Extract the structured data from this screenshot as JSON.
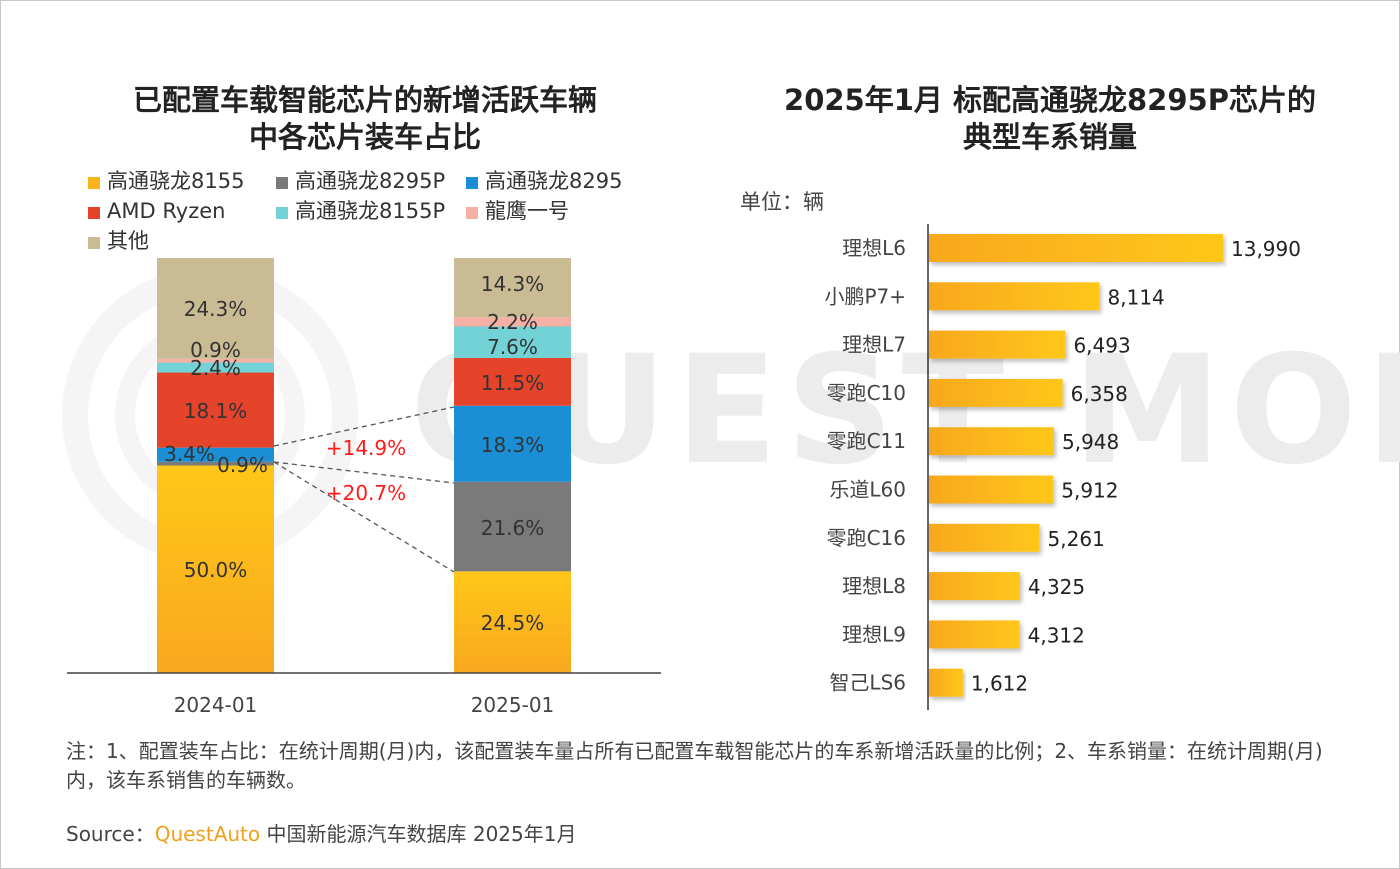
{
  "watermark": "QUEST MOBILE",
  "left": {
    "title_line1": "已配置车载智能芯片的新增活跃车辆",
    "title_line2": "中各芯片装车占比"
  },
  "right": {
    "title_line1": "2025年1月 标配高通骁龙8295P芯片的",
    "title_line2": "典型车系销量",
    "unit": "单位：辆"
  },
  "note": "注：1、配置装车占比：在统计周期(月)内，该配置装车量占所有已配置车载智能芯片的车系新增活跃量的比例；2、车系销量：在统计周期(月)内，该车系销售的车辆数。",
  "source": {
    "label": "Source：",
    "brand": "QuestAuto",
    "rest": " 中国新能源汽车数据库 2025年1月"
  },
  "chart_data": [
    {
      "type": "bar",
      "stacked": true,
      "title": "已配置车载智能芯片的新增活跃车辆中各芯片装车占比",
      "unit": "%",
      "categories": [
        "2024-01",
        "2025-01"
      ],
      "ylim": [
        0,
        100
      ],
      "grid": false,
      "legend_position": "top",
      "series": [
        {
          "name": "高通骁龙8155",
          "color": "#fbb51c",
          "values": [
            50.0,
            24.5
          ],
          "labels": [
            "50.0%",
            "24.5%"
          ]
        },
        {
          "name": "高通骁龙8295P",
          "color": "#7a7a7a",
          "values": [
            0.9,
            21.6
          ],
          "labels": [
            "0.9%",
            "21.6%"
          ]
        },
        {
          "name": "高通骁龙8295",
          "color": "#1a8fd5",
          "values": [
            3.4,
            18.3
          ],
          "labels": [
            "3.4%",
            "18.3%"
          ]
        },
        {
          "name": "AMD Ryzen",
          "color": "#e5432a",
          "values": [
            18.1,
            11.5
          ],
          "labels": [
            "18.1%",
            "11.5%"
          ]
        },
        {
          "name": "高通骁龙8155P",
          "color": "#72d2d5",
          "values": [
            2.4,
            7.6
          ],
          "labels": [
            "2.4%",
            "7.6%"
          ]
        },
        {
          "name": "龍鹰一号",
          "color": "#f6b0a5",
          "values": [
            0.9,
            2.2
          ],
          "labels": [
            "0.9%",
            "2.2%"
          ]
        },
        {
          "name": "其他",
          "color": "#c9bb93",
          "values": [
            24.3,
            14.3
          ],
          "labels": [
            "24.3%",
            "14.3%"
          ]
        }
      ],
      "annotations": [
        {
          "text": "+14.9%",
          "series": "高通骁龙8295",
          "color": "#ff1a1a"
        },
        {
          "text": "+20.7%",
          "series": "高通骁龙8295P",
          "color": "#ff1a1a"
        }
      ]
    },
    {
      "type": "bar",
      "orientation": "horizontal",
      "title": "2025年1月 标配高通骁龙8295P芯片的典型车系销量",
      "unit": "单位：辆",
      "color": "#fbb51c",
      "categories": [
        "理想L6",
        "小鹏P7+",
        "理想L7",
        "零跑C10",
        "零跑C11",
        "乐道L60",
        "零跑C16",
        "理想L8",
        "理想L9",
        "智己LS6"
      ],
      "values": [
        13990,
        8114,
        6493,
        6358,
        5948,
        5912,
        5261,
        4325,
        4312,
        1612
      ],
      "value_labels": [
        "13,990",
        "8,114",
        "6,493",
        "6,358",
        "5,948",
        "5,912",
        "5,261",
        "4,325",
        "4,312",
        "1,612"
      ]
    }
  ]
}
